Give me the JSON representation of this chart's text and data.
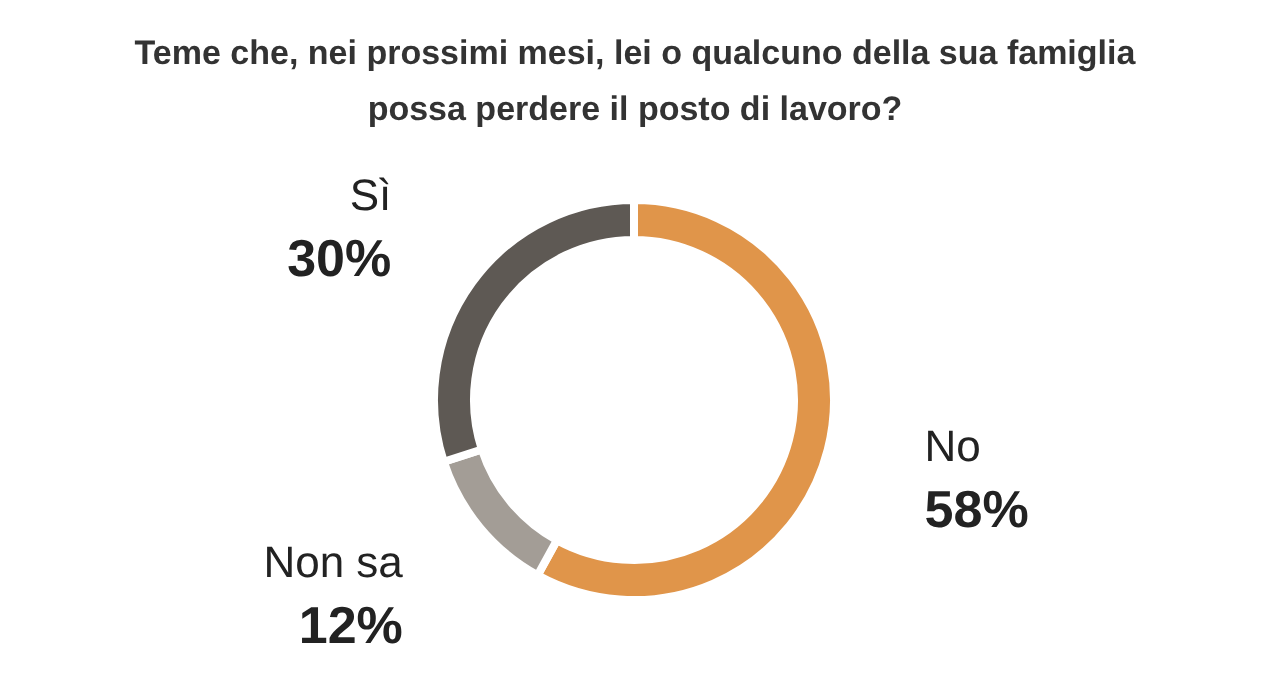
{
  "chart_data": {
    "type": "donut",
    "title": [
      "Teme che, nei prossimi mesi, lei o qualcuno della sua famiglia",
      "possa perdere il posto di lavoro?"
    ],
    "categories": [
      "No",
      "Non sa",
      "Sì"
    ],
    "values": [
      58,
      12,
      30
    ],
    "colors": [
      "#e0954a",
      "#a39d96",
      "#5e5954"
    ],
    "value_labels": [
      "58%",
      "12%",
      "30%"
    ]
  }
}
